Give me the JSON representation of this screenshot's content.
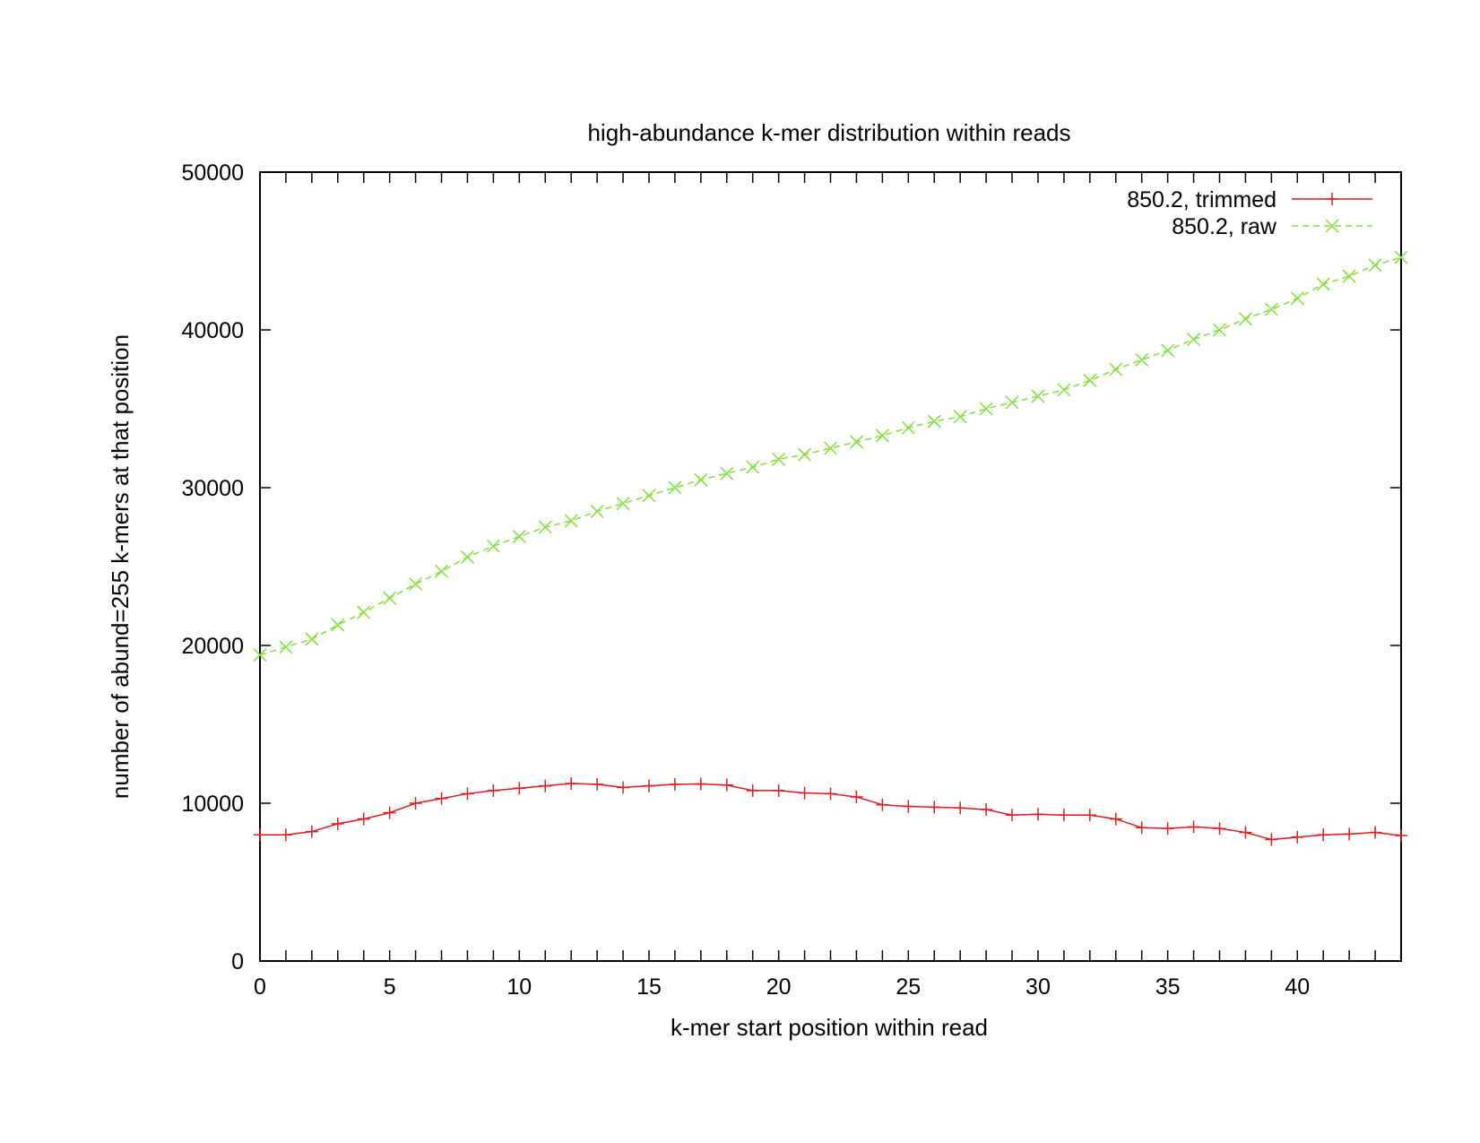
{
  "chart_data": {
    "type": "line",
    "title": "high-abundance k-mer distribution within reads",
    "xlabel": "k-mer start position within read",
    "ylabel": "number of abund=255 k-mers at that position",
    "xlim": [
      0,
      44
    ],
    "ylim": [
      0,
      50000
    ],
    "xticks": [
      0,
      5,
      10,
      15,
      20,
      25,
      30,
      35,
      40
    ],
    "yticks": [
      0,
      10000,
      20000,
      30000,
      40000,
      50000
    ],
    "grid": false,
    "legend_position": "top-right",
    "x": [
      0,
      1,
      2,
      3,
      4,
      5,
      6,
      7,
      8,
      9,
      10,
      11,
      12,
      13,
      14,
      15,
      16,
      17,
      18,
      19,
      20,
      21,
      22,
      23,
      24,
      25,
      26,
      27,
      28,
      29,
      30,
      31,
      32,
      33,
      34,
      35,
      36,
      37,
      38,
      39,
      40,
      41,
      42,
      43,
      44
    ],
    "series": [
      {
        "name": "850.2, trimmed",
        "color": "#e41a1c",
        "marker": "plus",
        "dash": "solid",
        "values": [
          8000,
          8000,
          8200,
          8700,
          9000,
          9400,
          10000,
          10300,
          10600,
          10800,
          10950,
          11100,
          11250,
          11200,
          11000,
          11100,
          11200,
          11220,
          11150,
          10800,
          10800,
          10650,
          10600,
          10400,
          9900,
          9800,
          9750,
          9700,
          9600,
          9250,
          9300,
          9250,
          9250,
          9000,
          8450,
          8400,
          8500,
          8400,
          8150,
          7700,
          7850,
          8000,
          8050,
          8150,
          7950
        ]
      },
      {
        "name": "850.2, raw",
        "color": "#7fe334",
        "marker": "x",
        "dash": "dashed",
        "values": [
          19400,
          19900,
          20400,
          21300,
          22100,
          23000,
          23900,
          24700,
          25600,
          26300,
          26900,
          27500,
          27900,
          28500,
          29000,
          29500,
          30000,
          30500,
          30900,
          31300,
          31800,
          32100,
          32500,
          32900,
          33300,
          33800,
          34200,
          34500,
          35000,
          35400,
          35800,
          36200,
          36800,
          37500,
          38100,
          38700,
          39400,
          40000,
          40700,
          41300,
          42000,
          42900,
          43400,
          44100,
          44600
        ]
      }
    ]
  }
}
